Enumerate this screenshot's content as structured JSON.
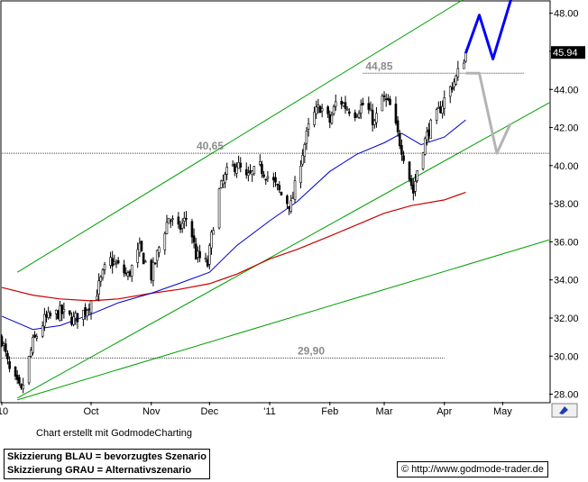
{
  "chart_data": {
    "type": "candlestick",
    "y_axis": {
      "ticks": [
        "48.00",
        "46.00",
        "44.00",
        "42.00",
        "40.00",
        "38.00",
        "36.00",
        "34.00",
        "32.00",
        "30.00",
        "28.00"
      ],
      "ylim": [
        27.6,
        48.6
      ],
      "position": "right"
    },
    "x_axis": {
      "labels": [
        {
          "text": "'10",
          "date": "2010-08-16"
        },
        {
          "text": "Oct",
          "date": "2010-10-01"
        },
        {
          "text": "Nov",
          "date": "2010-11-01"
        },
        {
          "text": "Dec",
          "date": "2010-12-01"
        },
        {
          "text": "'11",
          "date": "2011-01-01"
        },
        {
          "text": "Feb",
          "date": "2011-02-01"
        },
        {
          "text": "Mar",
          "date": "2011-03-01"
        },
        {
          "text": "Apr",
          "date": "2011-04-01"
        },
        {
          "text": "May",
          "date": "2011-05-01"
        }
      ],
      "range": [
        "2010-08-16",
        "2011-05-25"
      ]
    },
    "last_price": "45.94",
    "price_path": [
      [
        "2010-08-16",
        30.9
      ],
      [
        "2010-08-20",
        29.2
      ],
      [
        "2010-08-26",
        28.1
      ],
      [
        "2010-09-01",
        30.7
      ],
      [
        "2010-09-07",
        31.9
      ],
      [
        "2010-09-15",
        32.3
      ],
      [
        "2010-09-22",
        31.9
      ],
      [
        "2010-09-28",
        32.4
      ],
      [
        "2010-10-04",
        33.4
      ],
      [
        "2010-10-10",
        35.1
      ],
      [
        "2010-10-15",
        34.7
      ],
      [
        "2010-10-20",
        34.2
      ],
      [
        "2010-10-26",
        35.6
      ],
      [
        "2010-11-01",
        34.2
      ],
      [
        "2010-11-05",
        35.7
      ],
      [
        "2010-11-10",
        37.3
      ],
      [
        "2010-11-15",
        36.6
      ],
      [
        "2010-11-20",
        37.4
      ],
      [
        "2010-11-24",
        35.3
      ],
      [
        "2010-11-30",
        34.8
      ],
      [
        "2010-12-05",
        38.4
      ],
      [
        "2010-12-10",
        39.6
      ],
      [
        "2010-12-15",
        40.1
      ],
      [
        "2010-12-20",
        39.3
      ],
      [
        "2010-12-27",
        39.9
      ],
      [
        "2011-01-03",
        39.1
      ],
      [
        "2011-01-08",
        38.3
      ],
      [
        "2011-01-12",
        37.9
      ],
      [
        "2011-01-17",
        40.3
      ],
      [
        "2011-01-22",
        42.4
      ],
      [
        "2011-01-27",
        43.1
      ],
      [
        "2011-02-01",
        42.3
      ],
      [
        "2011-02-05",
        43.6
      ],
      [
        "2011-02-09",
        43.1
      ],
      [
        "2011-02-14",
        42.8
      ],
      [
        "2011-02-19",
        43.3
      ],
      [
        "2011-02-24",
        42.2
      ],
      [
        "2011-02-28",
        43.6
      ],
      [
        "2011-03-04",
        43.1
      ],
      [
        "2011-03-08",
        41.6
      ],
      [
        "2011-03-12",
        40.2
      ],
      [
        "2011-03-16",
        38.6
      ],
      [
        "2011-03-19",
        40.4
      ],
      [
        "2011-03-24",
        41.9
      ],
      [
        "2011-03-28",
        42.6
      ],
      [
        "2011-04-02",
        43.7
      ],
      [
        "2011-04-07",
        44.6
      ],
      [
        "2011-04-12",
        45.9
      ]
    ],
    "ma_blue": [
      [
        "2010-08-16",
        32.1
      ],
      [
        "2010-09-01",
        31.4
      ],
      [
        "2010-09-15",
        31.6
      ],
      [
        "2010-10-01",
        32.2
      ],
      [
        "2010-10-15",
        32.8
      ],
      [
        "2010-11-01",
        33.3
      ],
      [
        "2010-11-15",
        33.8
      ],
      [
        "2010-12-01",
        34.4
      ],
      [
        "2010-12-15",
        35.8
      ],
      [
        "2011-01-01",
        37.1
      ],
      [
        "2011-01-15",
        38.1
      ],
      [
        "2011-02-01",
        39.7
      ],
      [
        "2011-02-15",
        40.6
      ],
      [
        "2011-03-01",
        41.2
      ],
      [
        "2011-03-10",
        41.7
      ],
      [
        "2011-03-20",
        41.1
      ],
      [
        "2011-04-01",
        41.5
      ],
      [
        "2011-04-12",
        42.4
      ]
    ],
    "ma_red": [
      [
        "2010-08-16",
        33.6
      ],
      [
        "2010-09-01",
        33.2
      ],
      [
        "2010-09-15",
        33.0
      ],
      [
        "2010-10-01",
        32.9
      ],
      [
        "2010-10-15",
        33.0
      ],
      [
        "2010-11-01",
        33.3
      ],
      [
        "2010-11-15",
        33.5
      ],
      [
        "2010-12-01",
        33.8
      ],
      [
        "2010-12-15",
        34.3
      ],
      [
        "2011-01-01",
        35.1
      ],
      [
        "2011-01-15",
        35.6
      ],
      [
        "2011-02-01",
        36.3
      ],
      [
        "2011-02-15",
        36.9
      ],
      [
        "2011-03-01",
        37.5
      ],
      [
        "2011-03-15",
        37.9
      ],
      [
        "2011-04-01",
        38.2
      ],
      [
        "2011-04-12",
        38.6
      ]
    ],
    "trend_lines": [
      {
        "color": "#00a000",
        "points": [
          [
            "2010-08-24",
            34.4
          ],
          [
            "2011-04-12",
            48.8
          ]
        ]
      },
      {
        "color": "#00a000",
        "points": [
          [
            "2010-08-24",
            27.8
          ],
          [
            "2011-05-25",
            43.3
          ]
        ]
      },
      {
        "color": "#00a000",
        "points": [
          [
            "2010-08-24",
            27.7
          ],
          [
            "2011-05-25",
            36.1
          ]
        ]
      }
    ],
    "levels": [
      {
        "label": "44,85",
        "value": 44.85,
        "from": "2011-02-18",
        "to": "2011-05-12"
      },
      {
        "label": "40,65",
        "value": 40.65,
        "from": "2010-08-16",
        "to": "2011-05-25"
      },
      {
        "label": "29,90",
        "value": 29.9,
        "from": "2010-08-16",
        "to": "2011-04-01"
      }
    ],
    "scenario_blue": [
      [
        "2011-04-12",
        45.9
      ],
      [
        "2011-04-19",
        47.9
      ],
      [
        "2011-04-26",
        45.6
      ],
      [
        "2011-05-07",
        49.3
      ]
    ],
    "scenario_gray": [
      [
        "2011-04-12",
        44.85
      ],
      [
        "2011-04-19",
        44.85
      ],
      [
        "2011-04-28",
        40.65
      ],
      [
        "2011-05-05",
        42.2
      ]
    ],
    "colors": {
      "price": "#000000",
      "ma_blue": "#0000cc",
      "ma_red": "#cc0000",
      "trend": "#00a000",
      "levels": "#8c8c8c",
      "scenario_blue": "#0000ff",
      "scenario_gray": "#b4b4b4"
    }
  },
  "footer": {
    "credit": "Chart erstellt mit GodmodeCharting",
    "legend_blue": "Skizzierung BLAU = bevorzugtes Szenario",
    "legend_gray": "Skizzierung GRAU = Alternativszenario",
    "source": "© http://www.godmode-trader.de"
  }
}
